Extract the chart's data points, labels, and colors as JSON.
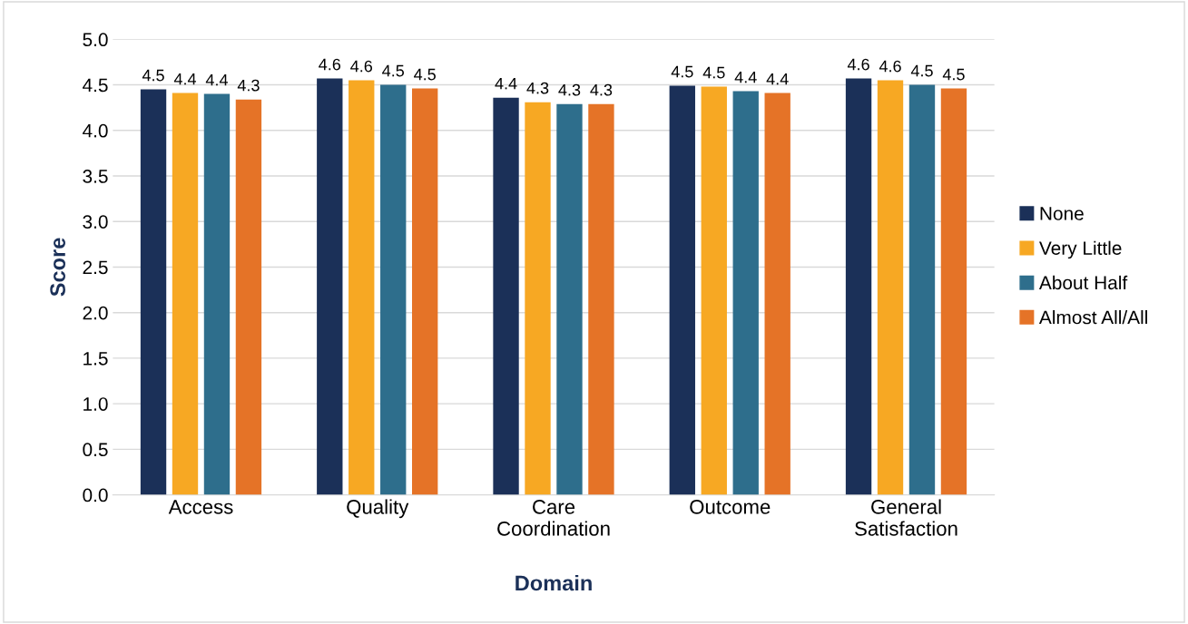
{
  "chart_data": {
    "type": "bar",
    "xlabel": "Domain",
    "ylabel": "Score",
    "categories": [
      "Access",
      "Quality",
      "Care\nCoordination",
      "Outcome",
      "General\nSatisfaction"
    ],
    "series": [
      {
        "name": "None",
        "color": "#1b3058",
        "values": [
          4.45,
          4.57,
          4.36,
          4.49,
          4.57
        ],
        "value_labels": [
          "4.5",
          "4.6",
          "4.4",
          "4.5",
          "4.6"
        ]
      },
      {
        "name": "Very Little",
        "color": "#f7a823",
        "values": [
          4.41,
          4.55,
          4.31,
          4.48,
          4.55
        ],
        "value_labels": [
          "4.4",
          "4.6",
          "4.3",
          "4.5",
          "4.6"
        ]
      },
      {
        "name": "About Half",
        "color": "#2e6e8c",
        "values": [
          4.4,
          4.5,
          4.29,
          4.43,
          4.5
        ],
        "value_labels": [
          "4.4",
          "4.5",
          "4.3",
          "4.4",
          "4.5"
        ]
      },
      {
        "name": "Almost All/All",
        "color": "#e57327",
        "values": [
          4.34,
          4.46,
          4.29,
          4.41,
          4.46
        ],
        "value_labels": [
          "4.3",
          "4.5",
          "4.3",
          "4.4",
          "4.5"
        ]
      }
    ],
    "ylim": [
      0,
      5
    ],
    "yticks": [
      {
        "value": 0,
        "label": "0.0"
      },
      {
        "value": 0.5,
        "label": "0.5"
      },
      {
        "value": 1,
        "label": "1.0"
      },
      {
        "value": 1.5,
        "label": "1.5"
      },
      {
        "value": 2,
        "label": "2.0"
      },
      {
        "value": 2.5,
        "label": "2.5"
      },
      {
        "value": 3,
        "label": "3.0"
      },
      {
        "value": 3.5,
        "label": "3.5"
      },
      {
        "value": 4,
        "label": "4.0"
      },
      {
        "value": 4.5,
        "label": "4.5"
      },
      {
        "value": 5,
        "label": "5.0"
      }
    ],
    "grid": "y",
    "legend": "right"
  }
}
